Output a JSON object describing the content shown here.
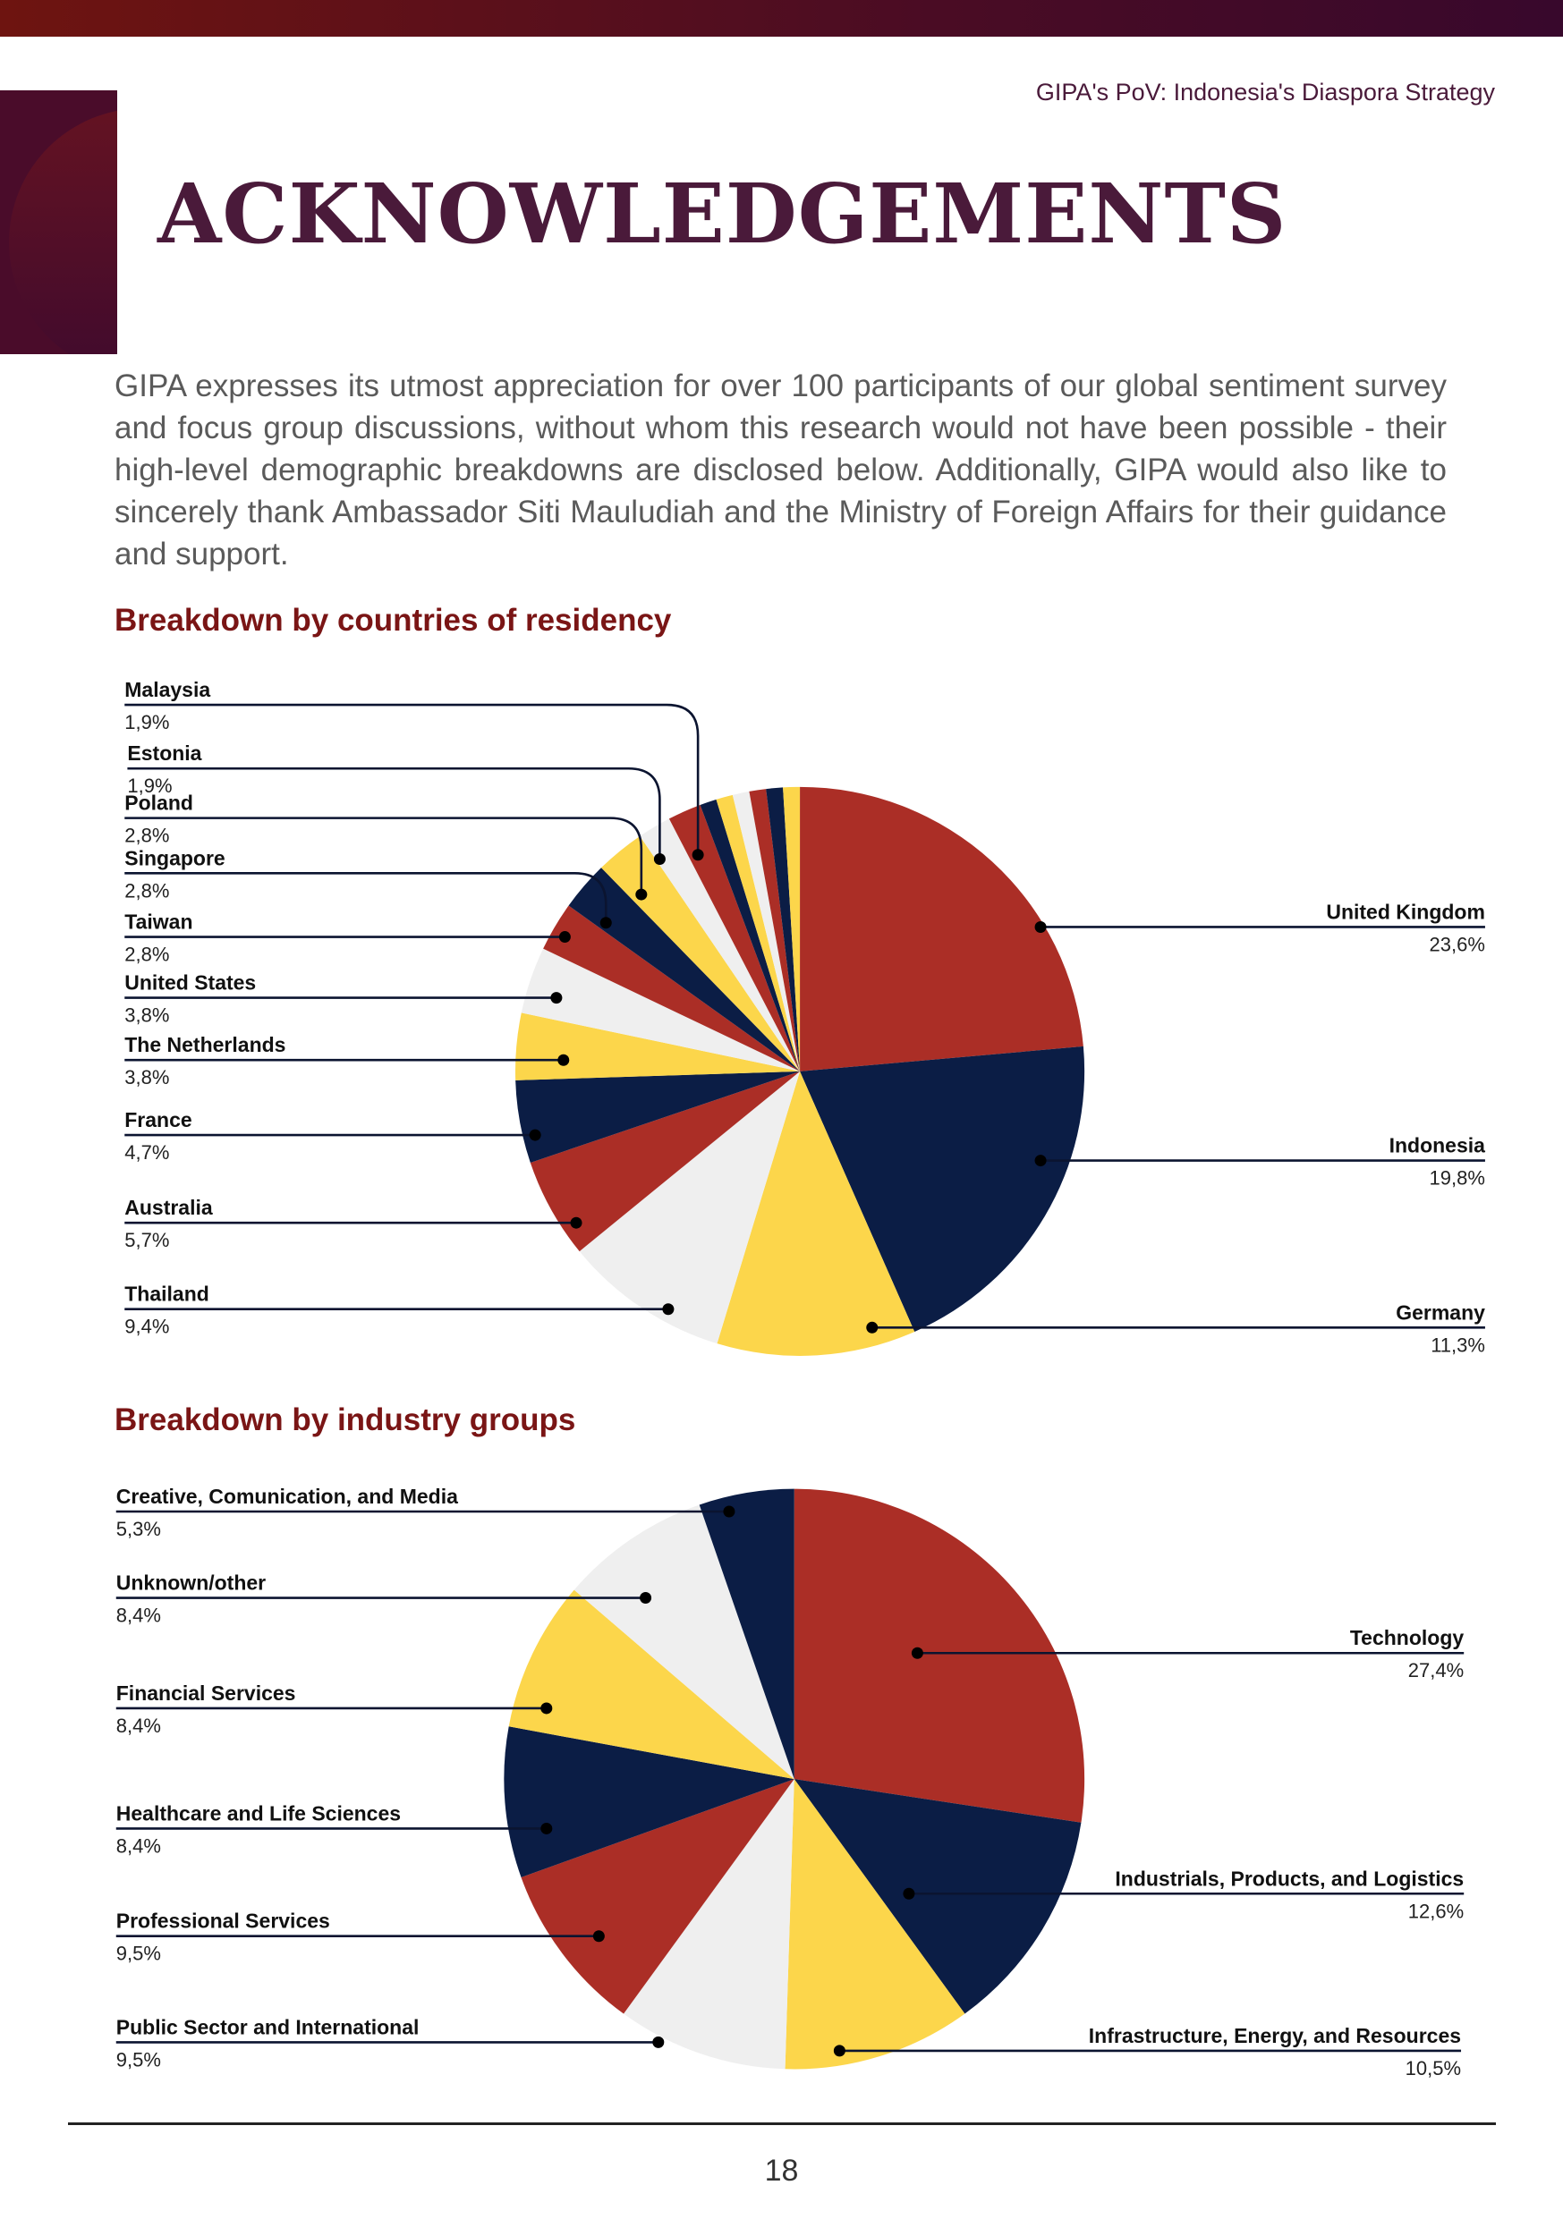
{
  "header": {
    "running_title": "GIPA's PoV: Indonesia's Diaspora Strategy"
  },
  "title": "ACKNOWLEDGEMENTS",
  "intro": "GIPA expresses its utmost appreciation for over 100 participants of our global sentiment survey and focus group discussions, without whom this research would not have been possible - their high-level demographic breakdowns are disclosed below. Additionally, GIPA would also like to sincerely thank Ambassador Siti Mauludiah and the Ministry of Foreign Affairs for their guidance and support.",
  "colors": {
    "red": "#ab2e26",
    "navy": "#0b1d45",
    "yellow": "#fcd64b",
    "grey": "#efefef",
    "heading": "#7a1515",
    "title": "#4a1a3a"
  },
  "chart_data": [
    {
      "type": "pie",
      "title": "Breakdown by countries of residency",
      "slices": [
        {
          "label": "United Kingdom",
          "value": 23.6,
          "display": "23,6%",
          "color": "#ab2e26"
        },
        {
          "label": "Indonesia",
          "value": 19.8,
          "display": "19,8%",
          "color": "#0b1d45"
        },
        {
          "label": "Germany",
          "value": 11.3,
          "display": "11,3%",
          "color": "#fcd64b"
        },
        {
          "label": "Thailand",
          "value": 9.4,
          "display": "9,4%",
          "color": "#efefef"
        },
        {
          "label": "Australia",
          "value": 5.7,
          "display": "5,7%",
          "color": "#ab2e26"
        },
        {
          "label": "France",
          "value": 4.7,
          "display": "4,7%",
          "color": "#0b1d45"
        },
        {
          "label": "The Netherlands",
          "value": 3.8,
          "display": "3,8%",
          "color": "#fcd64b"
        },
        {
          "label": "United States",
          "value": 3.8,
          "display": "3,8%",
          "color": "#efefef"
        },
        {
          "label": "Taiwan",
          "value": 2.8,
          "display": "2,8%",
          "color": "#ab2e26"
        },
        {
          "label": "Singapore",
          "value": 2.8,
          "display": "2,8%",
          "color": "#0b1d45"
        },
        {
          "label": "Poland",
          "value": 2.8,
          "display": "2,8%",
          "color": "#fcd64b"
        },
        {
          "label": "Estonia",
          "value": 1.9,
          "display": "1,9%",
          "color": "#efefef"
        },
        {
          "label": "Malaysia",
          "value": 1.9,
          "display": "1,9%",
          "color": "#ab2e26"
        },
        {
          "label": "",
          "value": 0.95,
          "display": "",
          "color": "#0b1d45"
        },
        {
          "label": "",
          "value": 0.95,
          "display": "",
          "color": "#fcd64b"
        },
        {
          "label": "",
          "value": 0.95,
          "display": "",
          "color": "#efefef"
        },
        {
          "label": "",
          "value": 0.95,
          "display": "",
          "color": "#ab2e26"
        },
        {
          "label": "",
          "value": 0.95,
          "display": "",
          "color": "#0b1d45"
        },
        {
          "label": "",
          "value": 0.95,
          "display": "",
          "color": "#fcd64b"
        }
      ]
    },
    {
      "type": "pie",
      "title": "Breakdown by industry groups",
      "slices": [
        {
          "label": "Technology",
          "value": 27.4,
          "display": "27,4%",
          "color": "#ab2e26"
        },
        {
          "label": "Industrials, Products, and Logistics",
          "value": 12.6,
          "display": "12,6%",
          "color": "#0b1d45"
        },
        {
          "label": "Infrastructure, Energy, and Resources",
          "value": 10.5,
          "display": "10,5%",
          "color": "#fcd64b"
        },
        {
          "label": "Public Sector and International",
          "value": 9.5,
          "display": "9,5%",
          "color": "#efefef"
        },
        {
          "label": "Professional Services",
          "value": 9.5,
          "display": "9,5%",
          "color": "#ab2e26"
        },
        {
          "label": "Healthcare and Life Sciences",
          "value": 8.4,
          "display": "8,4%",
          "color": "#0b1d45"
        },
        {
          "label": "Financial Services",
          "value": 8.4,
          "display": "8,4%",
          "color": "#fcd64b"
        },
        {
          "label": "Unknown/other",
          "value": 8.4,
          "display": "8,4%",
          "color": "#efefef"
        },
        {
          "label": "Creative, Comunication, and Media",
          "value": 5.3,
          "display": "5,3%",
          "color": "#0b1d45"
        }
      ]
    }
  ],
  "footer": {
    "page_number": "18"
  }
}
